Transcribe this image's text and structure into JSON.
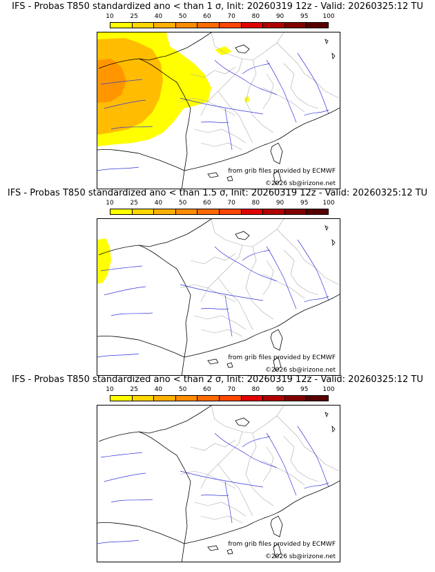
{
  "colorbar": {
    "ticks": [
      "10",
      "25",
      "40",
      "50",
      "60",
      "70",
      "80",
      "90",
      "95",
      "100"
    ],
    "colors": [
      "#ffff00",
      "#ffd700",
      "#ffb000",
      "#ff8c00",
      "#ff6a00",
      "#ff4500",
      "#e00000",
      "#b00000",
      "#800000",
      "#580000"
    ]
  },
  "colors": {
    "coast": "#000000",
    "rivers": "#3333dd",
    "borders": "#aaaaaa"
  },
  "panels": [
    {
      "title": "IFS - Probas T850  standardized ano < than 1 σ, Init: 20260319 12z - Valid: 20260325:12 TU",
      "credit1": "from grib files provided by ECMWF",
      "credit2": "©2026 sb@irizone.net",
      "has_yellow_blob": true,
      "has_orange_blob": true
    },
    {
      "title": "IFS - Probas T850  standardized ano < than 1.5 σ, Init: 20260319 12z - Valid: 20260325:12 TU",
      "credit1": "from grib files provided by ECMWF",
      "credit2": "©2026 sb@irizone.net",
      "has_yellow_blob": true,
      "has_orange_blob": false
    },
    {
      "title": "IFS - Probas T850  standardized ano < than 2 σ, Init: 20260319 12z - Valid: 20260325:12 TU",
      "credit1": "from grib files provided by ECMWF",
      "credit2": "©2026 sb@irizone.net",
      "has_yellow_blob": false,
      "has_orange_blob": false
    }
  ]
}
